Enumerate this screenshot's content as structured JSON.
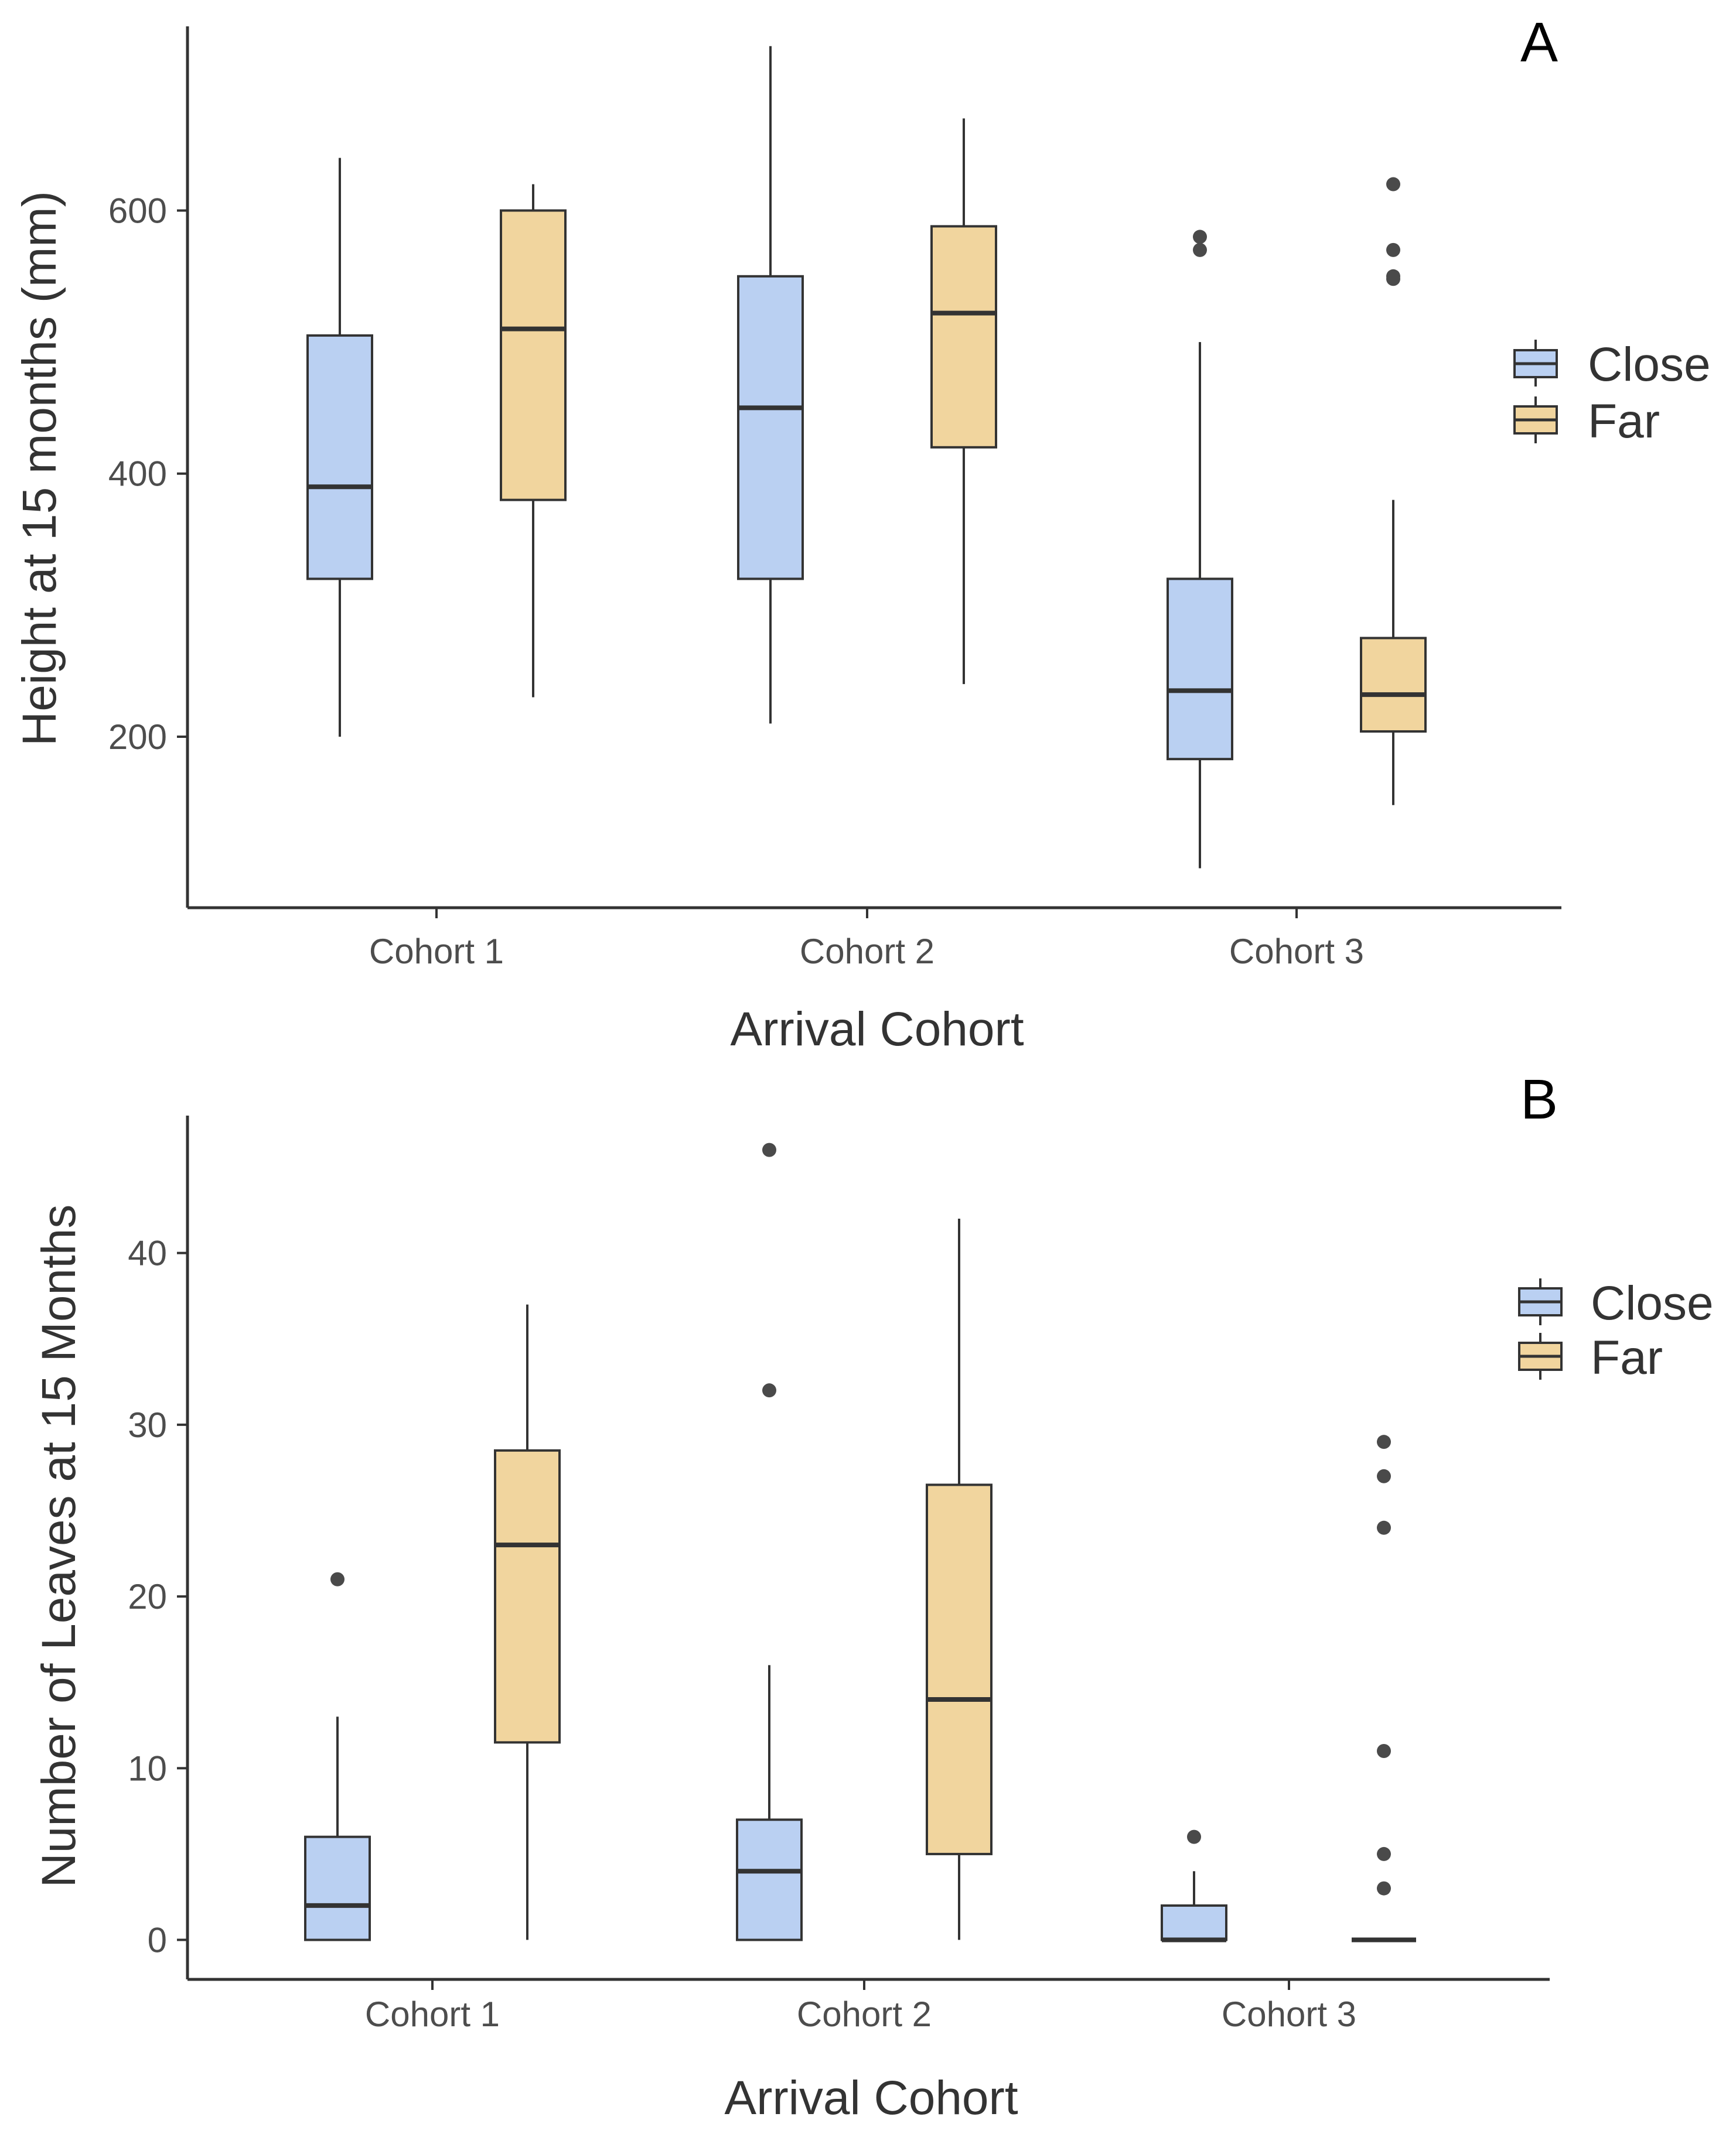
{
  "figure": {
    "legend": {
      "close": "Close",
      "far": "Far"
    },
    "colors": {
      "close_fill": "#bad0f2",
      "far_fill": "#f1d59e",
      "stroke": "#333333",
      "outlier": "#4a4a4a",
      "axis": "#333333"
    }
  },
  "chart_data": [
    {
      "type": "boxplot",
      "panel": "A",
      "xlabel": "Arrival Cohort",
      "ylabel": "Height at 15 months (mm)",
      "categories": [
        "Cohort 1",
        "Cohort 2",
        "Cohort 3"
      ],
      "ylim": [
        70,
        740
      ],
      "yticks": [
        200,
        400,
        600
      ],
      "legend_position": "right",
      "series": [
        {
          "name": "Close",
          "boxes": [
            {
              "min": 200,
              "q1": 320,
              "median": 390,
              "q3": 505,
              "max": 640,
              "outliers": []
            },
            {
              "min": 210,
              "q1": 320,
              "median": 450,
              "q3": 550,
              "max": 725,
              "outliers": []
            },
            {
              "min": 100,
              "q1": 183,
              "median": 235,
              "q3": 320,
              "max": 500,
              "outliers": [
                570,
                580
              ]
            }
          ]
        },
        {
          "name": "Far",
          "boxes": [
            {
              "min": 230,
              "q1": 380,
              "median": 510,
              "q3": 600,
              "max": 620,
              "outliers": []
            },
            {
              "min": 240,
              "q1": 420,
              "median": 522,
              "q3": 588,
              "max": 670,
              "outliers": []
            },
            {
              "min": 148,
              "q1": 204,
              "median": 232,
              "q3": 275,
              "max": 380,
              "outliers": [
                548,
                550,
                570,
                620
              ]
            }
          ]
        }
      ]
    },
    {
      "type": "boxplot",
      "panel": "B",
      "xlabel": "Arrival Cohort",
      "ylabel": "Number of Leaves at 15 Months",
      "categories": [
        "Cohort 1",
        "Cohort 2",
        "Cohort 3"
      ],
      "ylim": [
        -2.3,
        48
      ],
      "yticks": [
        0,
        10,
        20,
        30,
        40
      ],
      "legend_position": "right",
      "series": [
        {
          "name": "Close",
          "boxes": [
            {
              "min": 0,
              "q1": 0,
              "median": 2,
              "q3": 6,
              "max": 13,
              "outliers": [
                21
              ]
            },
            {
              "min": 0,
              "q1": 0,
              "median": 4,
              "q3": 7,
              "max": 16,
              "outliers": [
                32,
                46
              ]
            },
            {
              "min": 0,
              "q1": 0,
              "median": 0,
              "q3": 2,
              "max": 4,
              "outliers": [
                6
              ]
            }
          ]
        },
        {
          "name": "Far",
          "boxes": [
            {
              "min": 0,
              "q1": 11.5,
              "median": 23,
              "q3": 28.5,
              "max": 37,
              "outliers": []
            },
            {
              "min": 0,
              "q1": 5,
              "median": 14,
              "q3": 26.5,
              "max": 42,
              "outliers": []
            },
            {
              "min": 0,
              "q1": 0,
              "median": 0,
              "q3": 0,
              "max": 0,
              "outliers": [
                3,
                5,
                11,
                24,
                27,
                29
              ]
            }
          ]
        }
      ]
    }
  ]
}
